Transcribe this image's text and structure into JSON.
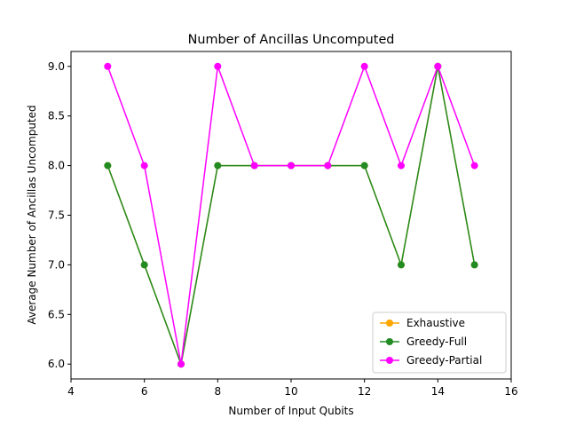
{
  "chart_data": {
    "type": "line",
    "title": "Number of Ancillas Uncomputed",
    "xlabel": "Number of Input Qubits",
    "ylabel": "Average Number of Ancillas Uncomputed",
    "xlim": [
      4,
      16
    ],
    "ylim": [
      5.85,
      9.15
    ],
    "xticks": [
      "4",
      "6",
      "8",
      "10",
      "12",
      "14",
      "16"
    ],
    "yticks": [
      "6.0",
      "6.5",
      "7.0",
      "7.5",
      "8.0",
      "8.5",
      "9.0"
    ],
    "grid": false,
    "legend_position": "lower-right",
    "x": [
      5,
      6,
      7,
      8,
      9,
      10,
      11,
      12,
      13,
      14,
      15
    ],
    "series": [
      {
        "name": "Exhaustive",
        "color": "#ffa500",
        "marker": "circle",
        "values": [
          8,
          7,
          6,
          8,
          8,
          8,
          8,
          8,
          7,
          9,
          7
        ]
      },
      {
        "name": "Greedy-Full",
        "color": "#228b22",
        "marker": "circle",
        "values": [
          8,
          7,
          6,
          8,
          8,
          8,
          8,
          8,
          7,
          9,
          7
        ]
      },
      {
        "name": "Greedy-Partial",
        "color": "#ff00ff",
        "marker": "circle",
        "values": [
          9,
          8,
          6,
          9,
          8,
          8,
          8,
          9,
          8,
          9,
          8
        ]
      }
    ]
  }
}
